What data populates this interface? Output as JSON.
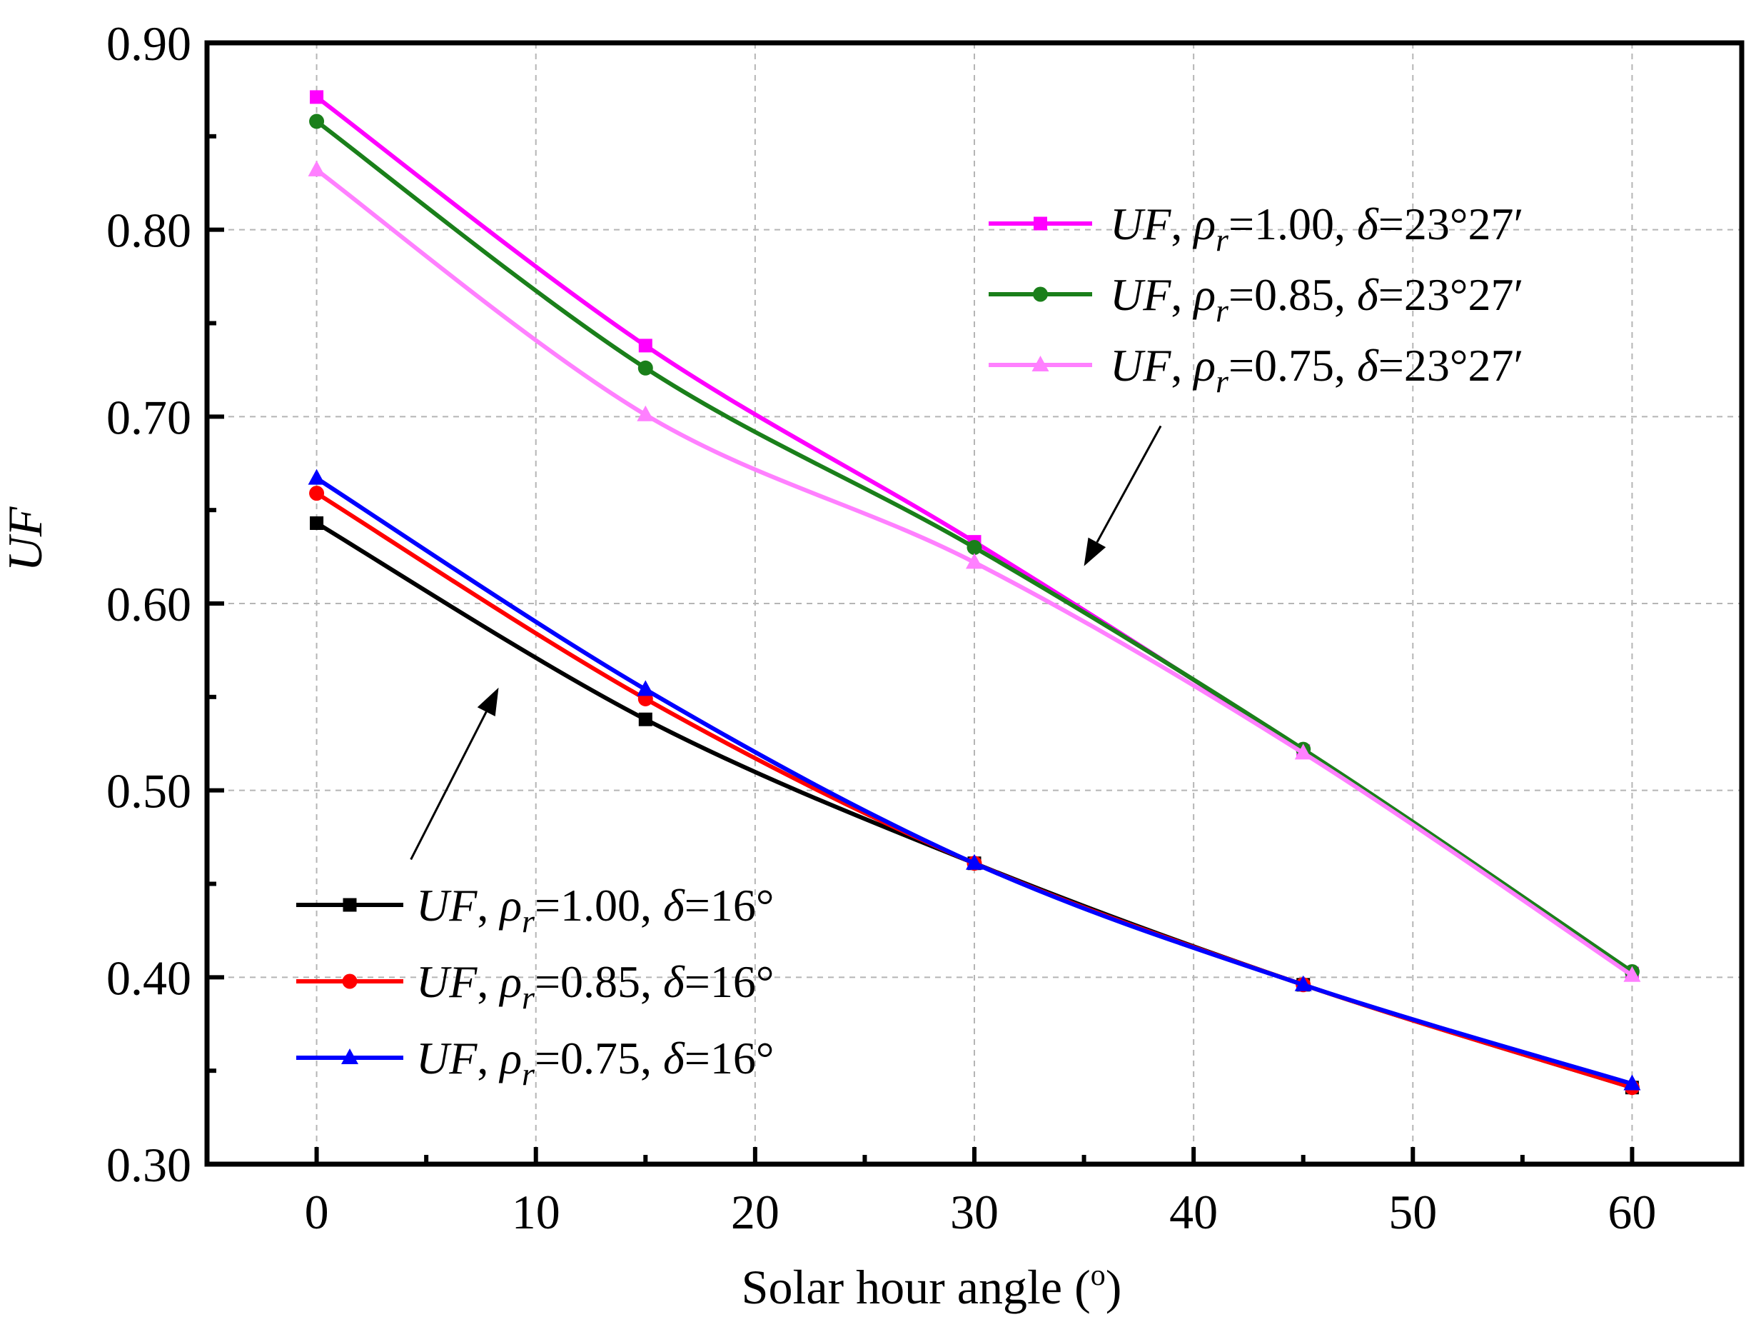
{
  "chart_data": {
    "type": "line",
    "xlabel": "Solar hour angle (",
    "xlabel_sup": "o",
    "xlabel_end": ")",
    "ylabel": "UF",
    "xlim": [
      -5,
      65
    ],
    "ylim": [
      0.3,
      0.9
    ],
    "x_ticks": [
      0,
      10,
      20,
      30,
      40,
      50,
      60
    ],
    "x_tick_labels": [
      "0",
      "10",
      "20",
      "30",
      "40",
      "50",
      "60"
    ],
    "y_ticks": [
      0.3,
      0.4,
      0.5,
      0.6,
      0.7,
      0.8,
      0.9
    ],
    "y_tick_labels": [
      "0.30",
      "0.40",
      "0.50",
      "0.60",
      "0.70",
      "0.80",
      "0.90"
    ],
    "grid": true,
    "x": [
      0,
      15,
      30,
      45,
      60
    ],
    "series": [
      {
        "name": "UF, ρr=1.00, δ=23°27′",
        "uf": "UF",
        "rho": "ρ",
        "sub": "r",
        "value": "=1.00, ",
        "delta": "δ",
        "decl": "=23°27′",
        "color": "#ff00ff",
        "marker": "square",
        "values": [
          0.871,
          0.738,
          0.633,
          0.521,
          0.402
        ]
      },
      {
        "name": "UF, ρr=0.85, δ=23°27′",
        "uf": "UF",
        "rho": "ρ",
        "sub": "r",
        "value": "=0.85, ",
        "delta": "δ",
        "decl": "=23°27′",
        "color": "#1a7f1a",
        "marker": "circle",
        "values": [
          0.858,
          0.726,
          0.63,
          0.522,
          0.403
        ]
      },
      {
        "name": "UF, ρr=0.75, δ=23°27′",
        "uf": "UF",
        "rho": "ρ",
        "sub": "r",
        "value": "=0.75, ",
        "delta": "δ",
        "decl": "=23°27′",
        "color": "#ff80ff",
        "marker": "triangle",
        "values": [
          0.832,
          0.701,
          0.622,
          0.52,
          0.401
        ]
      },
      {
        "name": "UF, ρr=1.00, δ=16°",
        "uf": "UF",
        "rho": "ρ",
        "sub": "r",
        "value": "=1.00, ",
        "delta": "δ",
        "decl": "=16°",
        "color": "#000000",
        "marker": "square",
        "values": [
          0.643,
          0.538,
          0.461,
          0.396,
          0.341
        ]
      },
      {
        "name": "UF, ρr=0.85, δ=16°",
        "uf": "UF",
        "rho": "ρ",
        "sub": "r",
        "value": "=0.85, ",
        "delta": "δ",
        "decl": "=16°",
        "color": "#ff0000",
        "marker": "circle",
        "values": [
          0.659,
          0.549,
          0.461,
          0.396,
          0.341
        ]
      },
      {
        "name": "UF, ρr=0.75, δ=16°",
        "uf": "UF",
        "rho": "ρ",
        "sub": "r",
        "value": "=0.75, ",
        "delta": "δ",
        "decl": "=16°",
        "color": "#0000ff",
        "marker": "triangle",
        "values": [
          0.667,
          0.554,
          0.461,
          0.396,
          0.343
        ]
      }
    ],
    "legends": [
      {
        "placement": "top-right",
        "series": [
          0,
          1,
          2
        ]
      },
      {
        "placement": "bottom-left",
        "series": [
          3,
          4,
          5
        ]
      }
    ],
    "annotations": [
      {
        "type": "arrow",
        "from": [
          38.5,
          0.695
        ],
        "to": [
          35.0,
          0.62
        ]
      },
      {
        "type": "arrow",
        "from": [
          4.3,
          0.463
        ],
        "to": [
          8.3,
          0.555
        ]
      }
    ]
  }
}
